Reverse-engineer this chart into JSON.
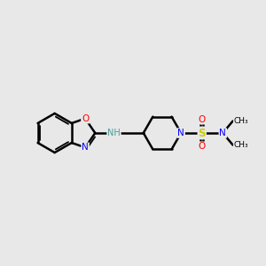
{
  "bg_color": "#e8e8e8",
  "bond_color": "#000000",
  "atom_colors": {
    "O": "#ff0000",
    "N_blue": "#0000ff",
    "S": "#cccc00",
    "N_teal": "#4d9999",
    "C": "#000000"
  },
  "figsize": [
    3.0,
    3.0
  ],
  "dpi": 100,
  "xlim": [
    0,
    10
  ],
  "ylim": [
    2,
    8
  ]
}
